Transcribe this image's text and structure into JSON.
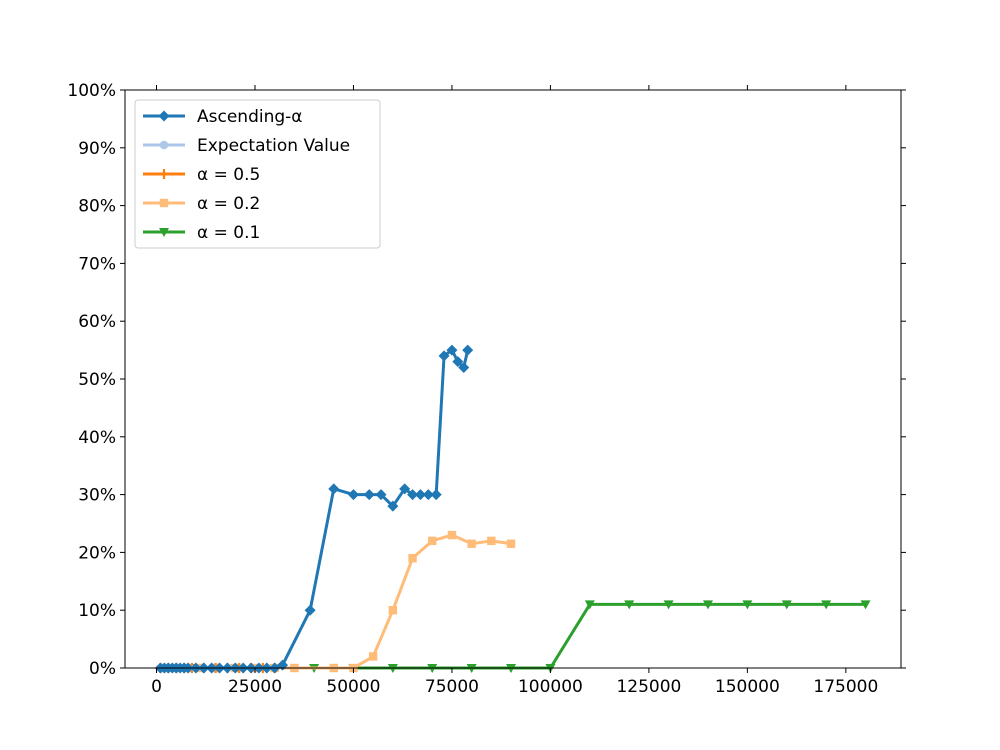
{
  "chart_data": {
    "type": "line",
    "title": "",
    "xlabel": "",
    "ylabel": "",
    "xlim": [
      -8000,
      189000
    ],
    "ylim": [
      0,
      100
    ],
    "x_ticks": [
      0,
      25000,
      50000,
      75000,
      100000,
      125000,
      150000,
      175000
    ],
    "x_tick_labels": [
      "0",
      "25000",
      "50000",
      "75000",
      "100000",
      "125000",
      "150000",
      "175000"
    ],
    "y_ticks": [
      0,
      10,
      20,
      30,
      40,
      50,
      60,
      70,
      80,
      90,
      100
    ],
    "y_tick_labels": [
      "0%",
      "10%",
      "20%",
      "30%",
      "40%",
      "50%",
      "60%",
      "70%",
      "80%",
      "90%",
      "100%"
    ],
    "grid": false,
    "legend_position": "upper-left",
    "series": [
      {
        "name": "Ascending-α",
        "color": "#1f77b4",
        "marker": "diamond",
        "x": [
          1000,
          2000,
          3000,
          4000,
          5000,
          6000,
          7000,
          8000,
          10000,
          12000,
          14000,
          16000,
          18000,
          20000,
          22000,
          24000,
          26000,
          28000,
          30000,
          32000,
          39000,
          45000,
          50000,
          54000,
          57000,
          60000,
          63000,
          65000,
          67000,
          69000,
          71000,
          73000,
          75000,
          76500,
          78000,
          79000
        ],
        "y": [
          0,
          0,
          0,
          0,
          0,
          0,
          0,
          0,
          0,
          0,
          0,
          0,
          0,
          0,
          0,
          0,
          0,
          0,
          0,
          0.5,
          10,
          31,
          30,
          30,
          30,
          28,
          31,
          30,
          30,
          30,
          30,
          54,
          55,
          53,
          52,
          55
        ]
      },
      {
        "name": "Expectation Value",
        "color": "#aec7e8",
        "marker": "circle",
        "x": [
          1000,
          2000,
          3000,
          4000,
          5000,
          6000,
          7000,
          8000,
          10000,
          12000,
          14000
        ],
        "y": [
          0,
          0,
          0,
          0,
          0,
          0,
          0,
          0,
          0,
          0,
          0
        ]
      },
      {
        "name": "α = 0.5",
        "color": "#ff7f0e",
        "marker": "plus",
        "x": [
          1000,
          3000,
          5000,
          7000,
          9000,
          12000,
          15000,
          18000,
          21000,
          24000,
          27000,
          30000
        ],
        "y": [
          0,
          0,
          0,
          0,
          0,
          0,
          0,
          0,
          0,
          0,
          0,
          0
        ]
      },
      {
        "name": "α = 0.2",
        "color": "#ffbb78",
        "marker": "square",
        "x": [
          2000,
          5000,
          8000,
          11000,
          15000,
          20000,
          25000,
          30000,
          35000,
          45000,
          50000,
          55000,
          60000,
          65000,
          70000,
          75000,
          80000,
          85000,
          90000
        ],
        "y": [
          0,
          0,
          0,
          0,
          0,
          0,
          0,
          0,
          0,
          0,
          0,
          2,
          10,
          19,
          22,
          23,
          21.5,
          22,
          21.5
        ]
      },
      {
        "name": "α = 0.1",
        "color": "#2ca02c",
        "marker": "triangle-down",
        "x": [
          10000,
          20000,
          30000,
          40000,
          50000,
          60000,
          70000,
          80000,
          90000,
          100000,
          110000,
          120000,
          130000,
          140000,
          150000,
          160000,
          170000,
          180000
        ],
        "y": [
          0,
          0,
          0,
          0,
          0,
          0,
          0,
          0,
          0,
          0,
          11,
          11,
          11,
          11,
          11,
          11,
          11,
          11
        ]
      }
    ]
  }
}
